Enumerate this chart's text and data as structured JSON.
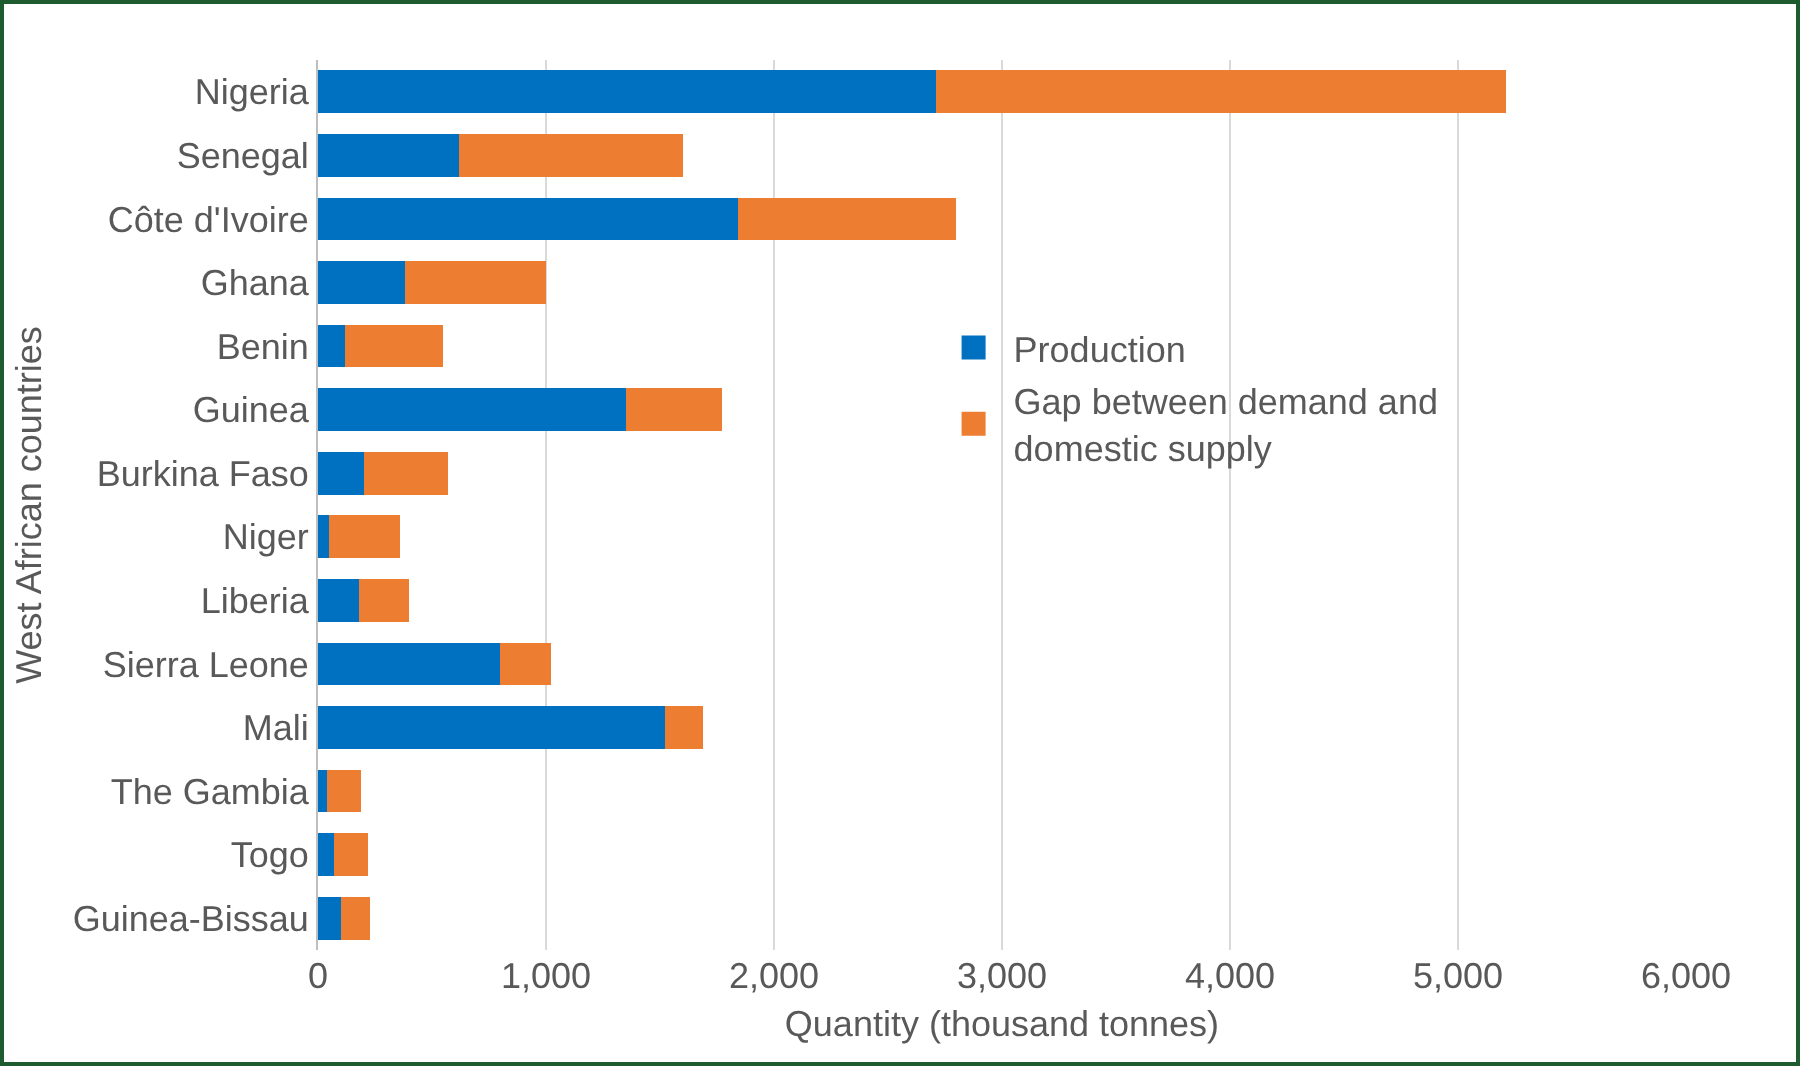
{
  "chart_data": {
    "type": "bar",
    "orientation": "horizontal",
    "stacked": true,
    "categories": [
      "Nigeria",
      "Senegal",
      "Côte d'Ivoire",
      "Ghana",
      "Benin",
      "Guinea",
      "Burkina Faso",
      "Niger",
      "Liberia",
      "Sierra Leone",
      "Mali",
      "The Gambia",
      "Togo",
      "Guinea-Bissau"
    ],
    "series": [
      {
        "name": "Production",
        "color": "#0070c0",
        "values": [
          2710,
          620,
          1840,
          380,
          120,
          1350,
          200,
          50,
          180,
          800,
          1520,
          40,
          70,
          100
        ]
      },
      {
        "name": "Gap between demand and domestic supply",
        "color": "#ed7d31",
        "values": [
          2500,
          980,
          960,
          620,
          430,
          420,
          370,
          310,
          220,
          220,
          170,
          150,
          150,
          130
        ]
      }
    ],
    "xlabel": "Quantity (thousand tonnes)",
    "ylabel": "West African countries",
    "xlim": [
      0,
      6000
    ],
    "xticks": [
      {
        "value": 0,
        "label": "0"
      },
      {
        "value": 1000,
        "label": "1,000"
      },
      {
        "value": 2000,
        "label": "2,000"
      },
      {
        "value": 3000,
        "label": "3,000"
      },
      {
        "value": 4000,
        "label": "4,000"
      },
      {
        "value": 5000,
        "label": "5,000"
      },
      {
        "value": 6000,
        "label": "6,000"
      }
    ],
    "grid": "x",
    "legend": "right"
  }
}
